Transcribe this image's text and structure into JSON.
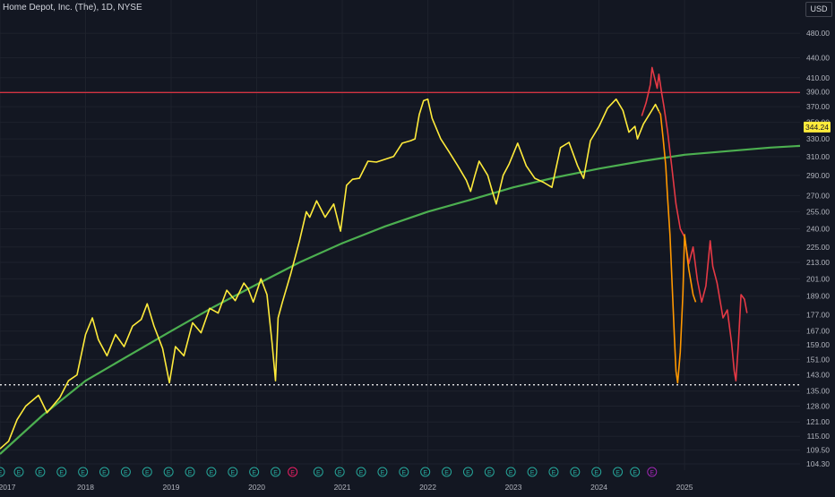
{
  "title": "Home Depot, Inc. (The), 1D, NYSE",
  "currency": "USD",
  "colors": {
    "background": "#131722",
    "grid": "#1e222d",
    "axis_text": "#b2b5be",
    "price": "#ffeb3b",
    "projection_orange": "#ff9800",
    "projection_red": "#e53945",
    "moving_average": "#4caf50",
    "resistance_line": "#f23645",
    "support_line": "#ffffff",
    "last_price_bg": "#ffeb3b",
    "earnings_green": "#26a69a",
    "earnings_pink": "#e91e63",
    "earnings_purple": "#9c27b0"
  },
  "chart_data": {
    "type": "line",
    "title": "Home Depot, Inc. (The), 1D, NYSE",
    "scale": "log",
    "xlim": [
      2017.0,
      2026.35
    ],
    "ylim": [
      102,
      540
    ],
    "x_ticks": [
      "2017",
      "2018",
      "2019",
      "2020",
      "2021",
      "2022",
      "2023",
      "2024",
      "2025"
    ],
    "y_ticks": [
      "480.00",
      "440.00",
      "410.00",
      "390.00",
      "370.00",
      "350.00",
      "330.00",
      "310.00",
      "290.00",
      "270.00",
      "255.00",
      "240.00",
      "225.00",
      "213.00",
      "201.00",
      "189.00",
      "177.00",
      "167.00",
      "159.00",
      "151.00",
      "143.00",
      "135.00",
      "128.00",
      "121.00",
      "115.00",
      "109.50",
      "104.30"
    ],
    "last_price": "344.24",
    "horizontal_lines": [
      {
        "label": "resistance",
        "value": 389,
        "style": "solid",
        "color": "#f23645"
      },
      {
        "label": "support",
        "value": 138,
        "style": "dotted",
        "color": "#ffffff"
      }
    ],
    "series": [
      {
        "color": "#ffeb3b",
        "points": [
          [
            2017.0,
            110
          ],
          [
            2017.1,
            113
          ],
          [
            2017.2,
            122
          ],
          [
            2017.3,
            128
          ],
          [
            2017.45,
            133
          ],
          [
            2017.55,
            125
          ],
          [
            2017.7,
            132
          ],
          [
            2017.8,
            140
          ],
          [
            2017.9,
            143
          ],
          [
            2018.0,
            165
          ],
          [
            2018.08,
            175
          ],
          [
            2018.15,
            162
          ],
          [
            2018.25,
            153
          ],
          [
            2018.35,
            165
          ],
          [
            2018.45,
            158
          ],
          [
            2018.55,
            170
          ],
          [
            2018.65,
            174
          ],
          [
            2018.72,
            184
          ],
          [
            2018.8,
            170
          ],
          [
            2018.9,
            157
          ],
          [
            2018.98,
            139
          ],
          [
            2019.05,
            158
          ],
          [
            2019.15,
            153
          ],
          [
            2019.25,
            172
          ],
          [
            2019.35,
            166
          ],
          [
            2019.45,
            181
          ],
          [
            2019.55,
            178
          ],
          [
            2019.65,
            193
          ],
          [
            2019.75,
            186
          ],
          [
            2019.85,
            198
          ],
          [
            2019.9,
            194
          ],
          [
            2019.96,
            185
          ],
          [
            2020.05,
            201
          ],
          [
            2020.12,
            190
          ],
          [
            2020.18,
            160
          ],
          [
            2020.22,
            140
          ],
          [
            2020.25,
            175
          ],
          [
            2020.3,
            185
          ],
          [
            2020.4,
            205
          ],
          [
            2020.5,
            230
          ],
          [
            2020.58,
            255
          ],
          [
            2020.62,
            250
          ],
          [
            2020.7,
            265
          ],
          [
            2020.8,
            250
          ],
          [
            2020.9,
            262
          ],
          [
            2020.98,
            238
          ],
          [
            2021.05,
            280
          ],
          [
            2021.12,
            286
          ],
          [
            2021.2,
            287
          ],
          [
            2021.3,
            305
          ],
          [
            2021.4,
            304
          ],
          [
            2021.5,
            307
          ],
          [
            2021.6,
            310
          ],
          [
            2021.7,
            325
          ],
          [
            2021.8,
            328
          ],
          [
            2021.85,
            330
          ],
          [
            2021.9,
            360
          ],
          [
            2021.95,
            378
          ],
          [
            2022.0,
            380
          ],
          [
            2022.05,
            355
          ],
          [
            2022.15,
            330
          ],
          [
            2022.25,
            315
          ],
          [
            2022.35,
            300
          ],
          [
            2022.45,
            285
          ],
          [
            2022.5,
            274
          ],
          [
            2022.55,
            290
          ],
          [
            2022.6,
            305
          ],
          [
            2022.7,
            290
          ],
          [
            2022.75,
            275
          ],
          [
            2022.8,
            262
          ],
          [
            2022.88,
            290
          ],
          [
            2022.95,
            302
          ],
          [
            2023.05,
            325
          ],
          [
            2023.15,
            300
          ],
          [
            2023.25,
            287
          ],
          [
            2023.35,
            283
          ],
          [
            2023.45,
            278
          ],
          [
            2023.55,
            320
          ],
          [
            2023.65,
            326
          ],
          [
            2023.75,
            300
          ],
          [
            2023.82,
            287
          ],
          [
            2023.9,
            328
          ],
          [
            2024.0,
            345
          ],
          [
            2024.1,
            368
          ],
          [
            2024.2,
            380
          ],
          [
            2024.28,
            365
          ],
          [
            2024.35,
            338
          ],
          [
            2024.42,
            345
          ],
          [
            2024.45,
            330
          ],
          [
            2024.52,
            348
          ],
          [
            2024.6,
            362
          ],
          [
            2024.66,
            373
          ],
          [
            2024.7,
            364
          ]
        ]
      },
      {
        "color": "#ff9800",
        "points": [
          [
            2024.7,
            364
          ],
          [
            2024.72,
            360
          ],
          [
            2024.75,
            330
          ],
          [
            2024.78,
            300
          ],
          [
            2024.8,
            270
          ],
          [
            2024.83,
            235
          ],
          [
            2024.86,
            190
          ],
          [
            2024.88,
            165
          ],
          [
            2024.9,
            145
          ],
          [
            2024.92,
            139
          ],
          [
            2024.95,
            155
          ],
          [
            2024.98,
            190
          ],
          [
            2025.0,
            235
          ],
          [
            2025.05,
            208
          ],
          [
            2025.1,
            190
          ],
          [
            2025.13,
            185
          ]
        ]
      },
      {
        "color": "#e53945",
        "points": [
          [
            2024.5,
            358
          ],
          [
            2024.55,
            375
          ],
          [
            2024.6,
            400
          ],
          [
            2024.62,
            425
          ],
          [
            2024.65,
            410
          ],
          [
            2024.68,
            395
          ],
          [
            2024.7,
            415
          ],
          [
            2024.73,
            390
          ],
          [
            2024.76,
            370
          ],
          [
            2024.8,
            340
          ],
          [
            2024.85,
            300
          ],
          [
            2024.9,
            262
          ],
          [
            2024.95,
            240
          ],
          [
            2025.0,
            233
          ],
          [
            2025.05,
            212
          ],
          [
            2025.1,
            225
          ],
          [
            2025.15,
            200
          ],
          [
            2025.2,
            185
          ],
          [
            2025.25,
            196
          ],
          [
            2025.3,
            230
          ],
          [
            2025.33,
            210
          ],
          [
            2025.38,
            198
          ],
          [
            2025.45,
            175
          ],
          [
            2025.5,
            180
          ],
          [
            2025.55,
            160
          ],
          [
            2025.58,
            145
          ],
          [
            2025.6,
            140
          ],
          [
            2025.63,
            160
          ],
          [
            2025.66,
            190
          ],
          [
            2025.7,
            187
          ],
          [
            2025.73,
            178
          ]
        ]
      },
      {
        "color": "#4caf50",
        "points": [
          [
            2017.0,
            108
          ],
          [
            2017.5,
            124
          ],
          [
            2018.0,
            140
          ],
          [
            2018.5,
            153
          ],
          [
            2019.0,
            167
          ],
          [
            2019.5,
            182
          ],
          [
            2020.0,
            197
          ],
          [
            2020.5,
            213
          ],
          [
            2021.0,
            228
          ],
          [
            2021.5,
            242
          ],
          [
            2022.0,
            255
          ],
          [
            2022.5,
            266
          ],
          [
            2023.0,
            278
          ],
          [
            2023.5,
            288
          ],
          [
            2024.0,
            297
          ],
          [
            2024.5,
            305
          ],
          [
            2025.0,
            312
          ],
          [
            2025.5,
            316
          ],
          [
            2026.0,
            320
          ],
          [
            2026.35,
            322
          ]
        ]
      }
    ]
  },
  "earnings_markers": {
    "glyph": "E",
    "items": [
      {
        "t": 2017.0,
        "kind": "green"
      },
      {
        "t": 2017.22,
        "kind": "green"
      },
      {
        "t": 2017.47,
        "kind": "green"
      },
      {
        "t": 2017.72,
        "kind": "green"
      },
      {
        "t": 2017.97,
        "kind": "green"
      },
      {
        "t": 2018.22,
        "kind": "green"
      },
      {
        "t": 2018.47,
        "kind": "green"
      },
      {
        "t": 2018.72,
        "kind": "green"
      },
      {
        "t": 2018.97,
        "kind": "green"
      },
      {
        "t": 2019.22,
        "kind": "green"
      },
      {
        "t": 2019.47,
        "kind": "green"
      },
      {
        "t": 2019.72,
        "kind": "green"
      },
      {
        "t": 2019.97,
        "kind": "green"
      },
      {
        "t": 2020.22,
        "kind": "green"
      },
      {
        "t": 2020.42,
        "kind": "pink"
      },
      {
        "t": 2020.72,
        "kind": "green"
      },
      {
        "t": 2020.97,
        "kind": "green"
      },
      {
        "t": 2021.22,
        "kind": "green"
      },
      {
        "t": 2021.47,
        "kind": "green"
      },
      {
        "t": 2021.72,
        "kind": "green"
      },
      {
        "t": 2021.97,
        "kind": "green"
      },
      {
        "t": 2022.22,
        "kind": "green"
      },
      {
        "t": 2022.47,
        "kind": "green"
      },
      {
        "t": 2022.72,
        "kind": "green"
      },
      {
        "t": 2022.97,
        "kind": "green"
      },
      {
        "t": 2023.22,
        "kind": "green"
      },
      {
        "t": 2023.47,
        "kind": "green"
      },
      {
        "t": 2023.72,
        "kind": "green"
      },
      {
        "t": 2023.97,
        "kind": "green"
      },
      {
        "t": 2024.22,
        "kind": "green"
      },
      {
        "t": 2024.42,
        "kind": "green"
      },
      {
        "t": 2024.62,
        "kind": "purple"
      }
    ]
  }
}
